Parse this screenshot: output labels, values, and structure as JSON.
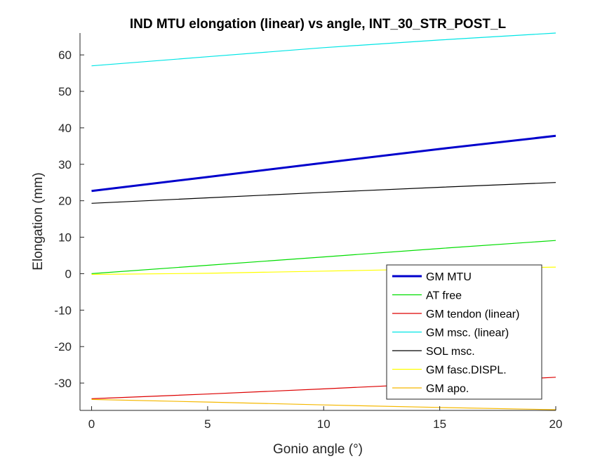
{
  "chart_data": {
    "type": "line",
    "title": "IND MTU elongation (linear) vs angle, INT_30_STR_POST_L",
    "xlabel": "Gonio angle (°)",
    "ylabel": "Elongation (mm)",
    "xlim": [
      -0.5,
      20
    ],
    "ylim": [
      -37.5,
      66
    ],
    "xticks": [
      0,
      5,
      10,
      15,
      20
    ],
    "yticks": [
      -30,
      -20,
      -10,
      0,
      10,
      20,
      30,
      40,
      50,
      60
    ],
    "x": [
      0,
      5,
      10,
      15,
      20
    ],
    "grid": false,
    "legend_position": "lower-right",
    "series": [
      {
        "name": "GM MTU",
        "color": "#0000cc",
        "width": 3,
        "values": [
          22.7,
          26.5,
          30.4,
          34.2,
          37.8
        ]
      },
      {
        "name": "AT free",
        "color": "#00dd00",
        "width": 1.2,
        "values": [
          0.0,
          2.3,
          4.6,
          6.9,
          9.1
        ]
      },
      {
        "name": "GM tendon (linear)",
        "color": "#dd0000",
        "width": 1.2,
        "values": [
          -34.3,
          -33.0,
          -31.6,
          -30.1,
          -28.4
        ]
      },
      {
        "name": "GM msc. (linear)",
        "color": "#00e5e5",
        "width": 1.2,
        "values": [
          57.0,
          59.5,
          62.0,
          64.1,
          66.0
        ]
      },
      {
        "name": "SOL msc.",
        "color": "#000000",
        "width": 1.2,
        "values": [
          19.3,
          20.8,
          22.3,
          23.7,
          25.0
        ]
      },
      {
        "name": "GM fasc.DISPL.",
        "color": "#ffff00",
        "width": 1.2,
        "values": [
          -0.2,
          0.1,
          0.7,
          1.3,
          1.8
        ]
      },
      {
        "name": "GM apo.",
        "color": "#f5b800",
        "width": 1.2,
        "values": [
          -34.5,
          -35.2,
          -36.0,
          -36.7,
          -37.3
        ]
      }
    ]
  }
}
